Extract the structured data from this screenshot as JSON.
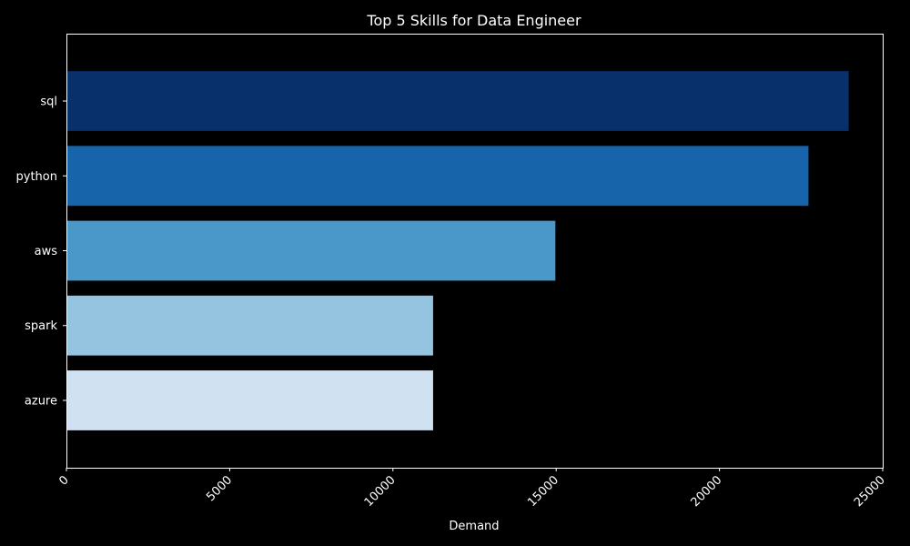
{
  "chart_data": {
    "type": "bar",
    "orientation": "horizontal",
    "title": "Top 5 Skills for Data Engineer",
    "xlabel": "Demand",
    "ylabel": "",
    "categories": [
      "sql",
      "python",
      "aws",
      "spark",
      "azure"
    ],
    "values": [
      23958,
      22727,
      14975,
      11230,
      11230
    ],
    "colors": [
      "#08306b",
      "#1764ab",
      "#4a98c9",
      "#94c4df",
      "#d0e1f2"
    ],
    "xlim": [
      0,
      25000
    ],
    "xticks": [
      0,
      5000,
      10000,
      15000,
      20000,
      25000
    ],
    "xtick_labels": [
      "0",
      "5000",
      "10000",
      "15000",
      "20000",
      "25000"
    ],
    "xtick_rotation": 45,
    "grid": false,
    "legend": "none",
    "background": "#000000",
    "foreground": "#ffffff"
  }
}
